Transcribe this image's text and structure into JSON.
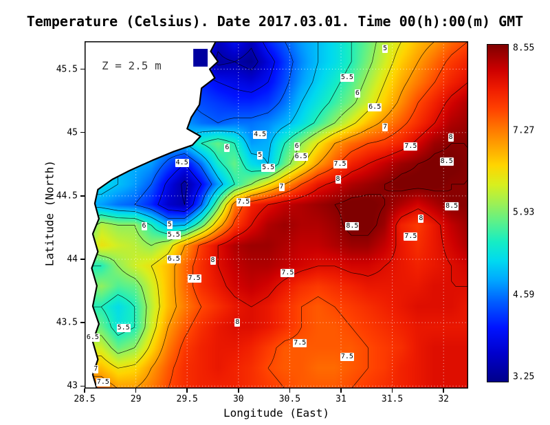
{
  "title": "Temperature (Celsius). Date 2017.03.01. Time 00(h):00(m) GMT",
  "annotation": "Z = 2.5 m",
  "axes": {
    "x": {
      "label": "Longitude (East)",
      "ticks": [
        "28.5",
        "29",
        "29.5",
        "30",
        "30.5",
        "31",
        "31.5",
        "32"
      ]
    },
    "y": {
      "label": "Latitude (North)",
      "ticks": [
        "45.5",
        "45",
        "44.5",
        "44",
        "43.5",
        "43"
      ]
    }
  },
  "colorbar": {
    "labels": [
      "8.55",
      "7.27",
      "5.93",
      "4.59",
      "3.25"
    ],
    "min": 3.25,
    "max": 8.55
  },
  "chart_data": {
    "type": "heatmap",
    "variable": "Temperature (Celsius)",
    "depth_m": 2.5,
    "date": "2017.03.01",
    "time_gmt": "00:00",
    "lon_range": [
      28.5,
      32.24
    ],
    "lat_range": [
      42.98,
      45.72
    ],
    "contour_interval": 0.5,
    "contour_levels": [
      3.5,
      4,
      4.5,
      5,
      5.5,
      6,
      6.5,
      7,
      7.5,
      8,
      8.5
    ],
    "value_min": 3.25,
    "value_max": 8.55,
    "land_color": "#ffffff",
    "coast_color": "#000000",
    "gridline_color": "#ffffff",
    "colormap_stops": [
      [
        3.25,
        "#00008a"
      ],
      [
        3.7,
        "#0000cd"
      ],
      [
        4.1,
        "#0013ff"
      ],
      [
        4.5,
        "#005cff"
      ],
      [
        4.85,
        "#00a8ff"
      ],
      [
        5.15,
        "#00d9f0"
      ],
      [
        5.45,
        "#16edc4"
      ],
      [
        5.75,
        "#59f18d"
      ],
      [
        6.05,
        "#9cf055"
      ],
      [
        6.35,
        "#d8ef1e"
      ],
      [
        6.65,
        "#ffd500"
      ],
      [
        6.95,
        "#ffa400"
      ],
      [
        7.25,
        "#ff7300"
      ],
      [
        7.55,
        "#ff4000"
      ],
      [
        7.85,
        "#ef1c00"
      ],
      [
        8.15,
        "#cd0000"
      ],
      [
        8.55,
        "#7f0000"
      ]
    ],
    "grid": {
      "note": "temperatures (C), row-major from north-west corner; lons 28.5..32.24, lats 45.72..42.98",
      "ncols": 24,
      "nrows": 18,
      "temps": [
        [
          5.0,
          5.0,
          5.0,
          5.0,
          5.0,
          5.0,
          5.0,
          4.5,
          3.6,
          4.0,
          3.6,
          4.2,
          4.5,
          4.8,
          5.0,
          5.2,
          5.5,
          5.8,
          6.2,
          6.5,
          6.8,
          7.0,
          7.3,
          7.5
        ],
        [
          5.0,
          5.0,
          5.0,
          5.0,
          5.0,
          5.0,
          5.0,
          4.0,
          3.4,
          3.5,
          3.3,
          3.8,
          4.3,
          4.7,
          5.0,
          5.2,
          5.5,
          5.9,
          6.3,
          6.7,
          7.0,
          7.3,
          7.6,
          7.8
        ],
        [
          5.0,
          5.0,
          5.0,
          5.0,
          5.0,
          5.0,
          5.0,
          4.2,
          4.0,
          3.9,
          3.8,
          4.0,
          4.4,
          4.8,
          5.1,
          5.4,
          5.7,
          6.1,
          6.5,
          6.9,
          7.2,
          7.5,
          7.8,
          8.0
        ],
        [
          5.0,
          5.0,
          5.0,
          5.0,
          5.0,
          5.0,
          4.5,
          4.4,
          4.3,
          4.2,
          4.2,
          4.3,
          4.6,
          5.0,
          5.3,
          5.6,
          5.9,
          6.3,
          6.7,
          7.1,
          7.5,
          7.8,
          8.1,
          8.3
        ],
        [
          5.0,
          5.0,
          5.0,
          5.0,
          5.0,
          5.0,
          4.8,
          4.6,
          4.5,
          4.6,
          4.6,
          4.7,
          4.9,
          5.2,
          5.6,
          6.0,
          6.4,
          6.8,
          7.1,
          7.4,
          7.7,
          8.0,
          8.3,
          8.4
        ],
        [
          5.0,
          5.0,
          5.0,
          5.0,
          5.0,
          4.9,
          5.0,
          5.5,
          5.8,
          5.5,
          4.8,
          4.9,
          5.5,
          6.0,
          6.5,
          7.0,
          7.3,
          7.5,
          7.6,
          7.8,
          8.1,
          8.4,
          8.5,
          8.5
        ],
        [
          5.0,
          5.0,
          5.0,
          4.9,
          4.8,
          4.4,
          4.0,
          4.6,
          5.4,
          5.8,
          5.2,
          5.0,
          5.8,
          6.4,
          7.0,
          7.4,
          7.8,
          8.0,
          8.2,
          8.4,
          8.5,
          8.6,
          8.6,
          8.5
        ],
        [
          5.0,
          5.2,
          5.0,
          4.8,
          4.5,
          3.9,
          3.4,
          4.0,
          4.8,
          5.5,
          6.0,
          6.5,
          7.0,
          7.5,
          7.9,
          8.1,
          8.3,
          8.4,
          8.5,
          8.6,
          8.6,
          8.6,
          8.5,
          8.5
        ],
        [
          5.0,
          4.8,
          4.6,
          4.5,
          4.2,
          3.7,
          3.5,
          4.5,
          5.8,
          7.2,
          7.8,
          8.0,
          8.2,
          8.3,
          8.4,
          8.5,
          8.6,
          8.6,
          8.5,
          8.3,
          8.1,
          8.3,
          8.5,
          8.5
        ],
        [
          5.5,
          6.2,
          6.0,
          6.0,
          5.5,
          4.9,
          5.0,
          5.8,
          6.8,
          7.6,
          8.0,
          8.3,
          8.4,
          8.3,
          8.3,
          8.4,
          8.6,
          8.6,
          8.4,
          7.8,
          7.6,
          7.9,
          8.2,
          8.4
        ],
        [
          6.0,
          6.5,
          6.3,
          6.2,
          6.0,
          6.3,
          7.0,
          7.6,
          8.0,
          8.3,
          8.4,
          8.4,
          8.3,
          8.2,
          8.2,
          8.3,
          8.4,
          8.4,
          8.2,
          7.9,
          7.7,
          7.9,
          8.1,
          8.3
        ],
        [
          5.5,
          5.5,
          6.0,
          6.3,
          6.5,
          6.8,
          7.3,
          7.7,
          8.0,
          8.2,
          8.3,
          8.3,
          8.2,
          8.1,
          8.0,
          8.0,
          8.1,
          8.1,
          8.0,
          7.9,
          7.8,
          7.9,
          8.0,
          8.1
        ],
        [
          5.8,
          6.0,
          5.7,
          5.8,
          6.3,
          6.8,
          7.3,
          7.7,
          7.9,
          8.1,
          8.2,
          8.1,
          7.9,
          7.7,
          7.6,
          7.7,
          7.8,
          7.9,
          7.9,
          7.9,
          7.9,
          8.0,
          8.0,
          8.0
        ],
        [
          5.5,
          5.5,
          5.2,
          5.5,
          6.2,
          6.8,
          7.2,
          7.5,
          7.7,
          7.9,
          8.0,
          7.9,
          7.7,
          7.5,
          7.4,
          7.5,
          7.6,
          7.7,
          7.8,
          7.9,
          8.0,
          8.0,
          8.0,
          7.9
        ],
        [
          5.8,
          5.8,
          5.3,
          5.5,
          6.3,
          7.0,
          7.4,
          7.7,
          7.9,
          8.0,
          8.0,
          7.9,
          7.7,
          7.5,
          7.4,
          7.4,
          7.5,
          7.6,
          7.7,
          7.8,
          7.9,
          7.9,
          7.9,
          7.9
        ],
        [
          6.3,
          6.3,
          5.8,
          6.0,
          6.6,
          7.2,
          7.6,
          7.8,
          7.9,
          7.9,
          7.8,
          7.6,
          7.4,
          7.4,
          7.4,
          7.4,
          7.4,
          7.5,
          7.6,
          7.7,
          7.9,
          8.0,
          8.0,
          8.0
        ],
        [
          6.8,
          6.8,
          6.5,
          6.6,
          7.0,
          7.4,
          7.7,
          7.8,
          7.9,
          7.8,
          7.7,
          7.5,
          7.4,
          7.4,
          7.3,
          7.3,
          7.4,
          7.5,
          7.6,
          7.8,
          7.9,
          8.0,
          8.0,
          8.0
        ],
        [
          7.3,
          7.3,
          7.0,
          7.0,
          7.2,
          7.5,
          7.7,
          7.8,
          7.8,
          7.8,
          7.7,
          7.6,
          7.5,
          7.4,
          7.4,
          7.4,
          7.5,
          7.6,
          7.7,
          7.8,
          7.9,
          8.0,
          8.0,
          8.0
        ]
      ]
    },
    "contour_labels": [
      {
        "v": "5",
        "lon": 31.43,
        "lat": 45.66
      },
      {
        "v": "5.5",
        "lon": 31.06,
        "lat": 45.43
      },
      {
        "v": "6",
        "lon": 31.16,
        "lat": 45.31
      },
      {
        "v": "6.5",
        "lon": 31.33,
        "lat": 45.2
      },
      {
        "v": "7",
        "lon": 31.43,
        "lat": 45.04
      },
      {
        "v": "7.5",
        "lon": 31.68,
        "lat": 44.89
      },
      {
        "v": "8",
        "lon": 32.07,
        "lat": 44.96
      },
      {
        "v": "8.5",
        "lon": 32.03,
        "lat": 44.77
      },
      {
        "v": "4.5",
        "lon": 30.21,
        "lat": 44.98
      },
      {
        "v": "6",
        "lon": 29.89,
        "lat": 44.88
      },
      {
        "v": "4.5",
        "lon": 29.45,
        "lat": 44.76
      },
      {
        "v": "5",
        "lon": 30.21,
        "lat": 44.82
      },
      {
        "v": "5.5",
        "lon": 30.29,
        "lat": 44.72
      },
      {
        "v": "6",
        "lon": 30.57,
        "lat": 44.89
      },
      {
        "v": "6.5",
        "lon": 30.61,
        "lat": 44.81
      },
      {
        "v": "7.5",
        "lon": 30.99,
        "lat": 44.75
      },
      {
        "v": "8",
        "lon": 30.97,
        "lat": 44.63
      },
      {
        "v": "7",
        "lon": 30.42,
        "lat": 44.57
      },
      {
        "v": "7.5",
        "lon": 30.05,
        "lat": 44.45
      },
      {
        "v": "8.5",
        "lon": 32.08,
        "lat": 44.42
      },
      {
        "v": "8",
        "lon": 31.78,
        "lat": 44.32
      },
      {
        "v": "8.5",
        "lon": 31.11,
        "lat": 44.26
      },
      {
        "v": "7.5",
        "lon": 31.68,
        "lat": 44.18
      },
      {
        "v": "6",
        "lon": 29.08,
        "lat": 44.26
      },
      {
        "v": "5",
        "lon": 29.33,
        "lat": 44.27
      },
      {
        "v": "5.5",
        "lon": 29.37,
        "lat": 44.19
      },
      {
        "v": "6.5",
        "lon": 29.37,
        "lat": 44.0
      },
      {
        "v": "8",
        "lon": 29.75,
        "lat": 43.99
      },
      {
        "v": "7.5",
        "lon": 29.57,
        "lat": 43.85
      },
      {
        "v": "7.5",
        "lon": 30.48,
        "lat": 43.89
      },
      {
        "v": "8",
        "lon": 29.99,
        "lat": 43.5
      },
      {
        "v": "7.5",
        "lon": 30.6,
        "lat": 43.34
      },
      {
        "v": "7.5",
        "lon": 31.06,
        "lat": 43.23
      },
      {
        "v": "5.5",
        "lon": 28.88,
        "lat": 43.46
      },
      {
        "v": "6.5",
        "lon": 28.58,
        "lat": 43.38
      },
      {
        "v": "7",
        "lon": 28.61,
        "lat": 43.13
      },
      {
        "v": "7.5",
        "lon": 28.68,
        "lat": 43.03
      }
    ],
    "coast": {
      "coastline": [
        [
          29.78,
          45.72
        ],
        [
          29.73,
          45.64
        ],
        [
          29.8,
          45.56
        ],
        [
          29.72,
          45.5
        ],
        [
          29.77,
          45.43
        ],
        [
          29.64,
          45.35
        ],
        [
          29.62,
          45.22
        ],
        [
          29.54,
          45.12
        ],
        [
          29.5,
          45.03
        ],
        [
          29.63,
          44.97
        ],
        [
          29.55,
          44.9
        ],
        [
          29.37,
          44.85
        ],
        [
          29.16,
          44.78
        ],
        [
          28.94,
          44.7
        ],
        [
          28.77,
          44.63
        ],
        [
          28.63,
          44.55
        ],
        [
          28.6,
          44.44
        ],
        [
          28.64,
          44.32
        ],
        [
          28.58,
          44.2
        ],
        [
          28.63,
          44.06
        ],
        [
          28.57,
          43.93
        ],
        [
          28.62,
          43.79
        ],
        [
          28.58,
          43.63
        ],
        [
          28.64,
          43.49
        ],
        [
          28.58,
          43.35
        ],
        [
          28.63,
          43.21
        ],
        [
          28.58,
          43.09
        ],
        [
          28.62,
          42.98
        ]
      ],
      "lake": {
        "lon_min": 29.56,
        "lon_max": 29.7,
        "lat_min": 45.52,
        "lat_max": 45.66,
        "color": "#0000a0"
      }
    }
  }
}
